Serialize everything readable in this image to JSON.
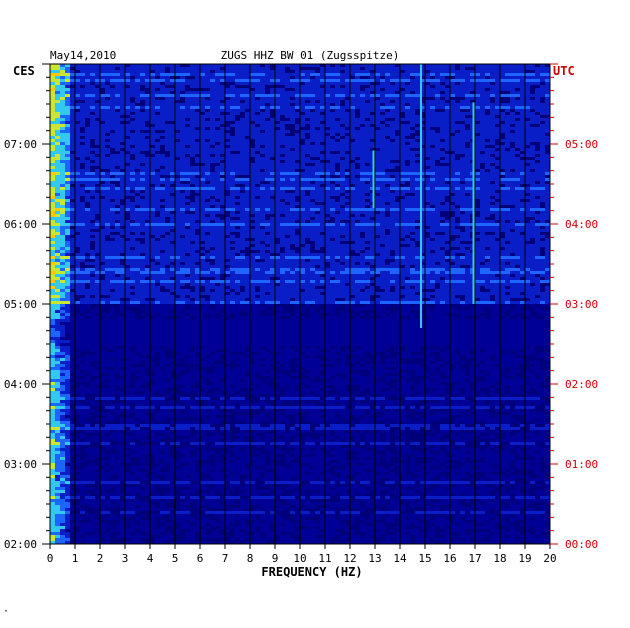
{
  "header": {
    "date": "May14,2010",
    "station": "ZUGS HHZ BW 01 (Zugsspitze)",
    "left_tz": "CES",
    "right_tz": "UTC"
  },
  "footer_mark": "·",
  "chart_data": {
    "type": "heatmap",
    "title": "ZUGS HHZ BW 01 (Zugsspitze)",
    "xlabel": "FREQUENCY (HZ)",
    "xlim": [
      0,
      20
    ],
    "x_ticks": [
      "0",
      "1",
      "2",
      "3",
      "4",
      "5",
      "6",
      "7",
      "8",
      "9",
      "10",
      "11",
      "12",
      "13",
      "14",
      "15",
      "16",
      "17",
      "18",
      "19",
      "20"
    ],
    "left_axis": {
      "label": "CES",
      "ticks": [
        "02:00",
        "03:00",
        "04:00",
        "05:00",
        "06:00",
        "07:00"
      ]
    },
    "right_axis": {
      "label": "UTC",
      "ticks": [
        "00:00",
        "01:00",
        "02:00",
        "03:00",
        "04:00",
        "05:00"
      ]
    },
    "time_range_hours": [
      2,
      8
    ],
    "grid": true,
    "colormap": [
      "#00007a",
      "#0a1ec8",
      "#1e64ff",
      "#32c8f0",
      "#c8e632",
      "#ffc800",
      "#ff2800"
    ],
    "background_color": "#000096",
    "axis_colors": {
      "left": "#000000",
      "right": "#cc0000"
    }
  }
}
